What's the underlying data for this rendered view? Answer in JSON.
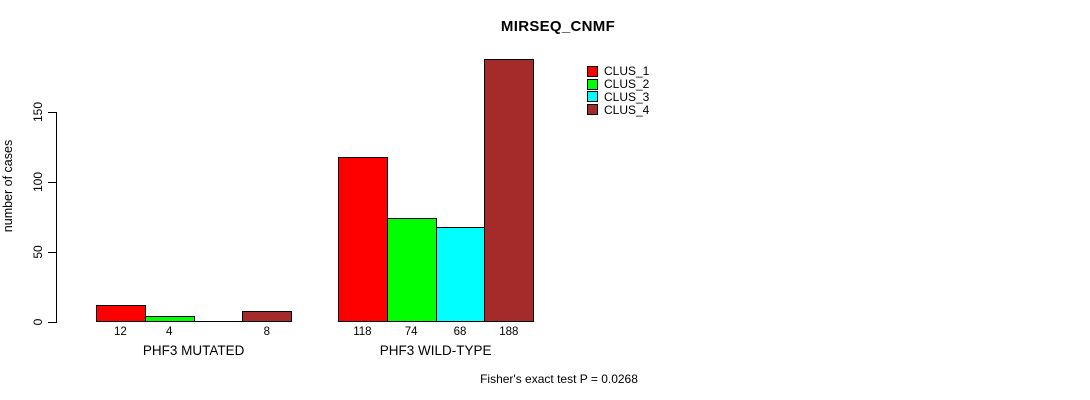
{
  "chart_data": {
    "type": "bar",
    "title": "MIRSEQ_CNMF",
    "ylabel": "number of cases",
    "xlabel": "",
    "categories": [
      "PHF3 MUTATED",
      "PHF3 WILD-TYPE"
    ],
    "series": [
      {
        "name": "CLUS_1",
        "color": "#ff0000",
        "values": [
          12,
          118
        ]
      },
      {
        "name": "CLUS_2",
        "color": "#00ff00",
        "values": [
          4,
          74
        ]
      },
      {
        "name": "CLUS_3",
        "color": "#00ffff",
        "values": [
          0,
          68
        ]
      },
      {
        "name": "CLUS_4",
        "color": "#a52a2a",
        "values": [
          8,
          188
        ]
      }
    ],
    "bar_value_labels": [
      [
        "12",
        "4",
        "",
        "8"
      ],
      [
        "118",
        "74",
        "68",
        "188"
      ]
    ],
    "yticks": [
      0,
      50,
      100,
      150
    ],
    "ylim": [
      0,
      190
    ],
    "grid": false,
    "legend_position": "upper-right-inside",
    "legend_entries": [
      "CLUS_1",
      "CLUS_2",
      "CLUS_3",
      "CLUS_4"
    ],
    "annotation": "Fisher's exact test P = 0.0268",
    "axis_color": "#000000",
    "background_color": "#ffffff"
  }
}
